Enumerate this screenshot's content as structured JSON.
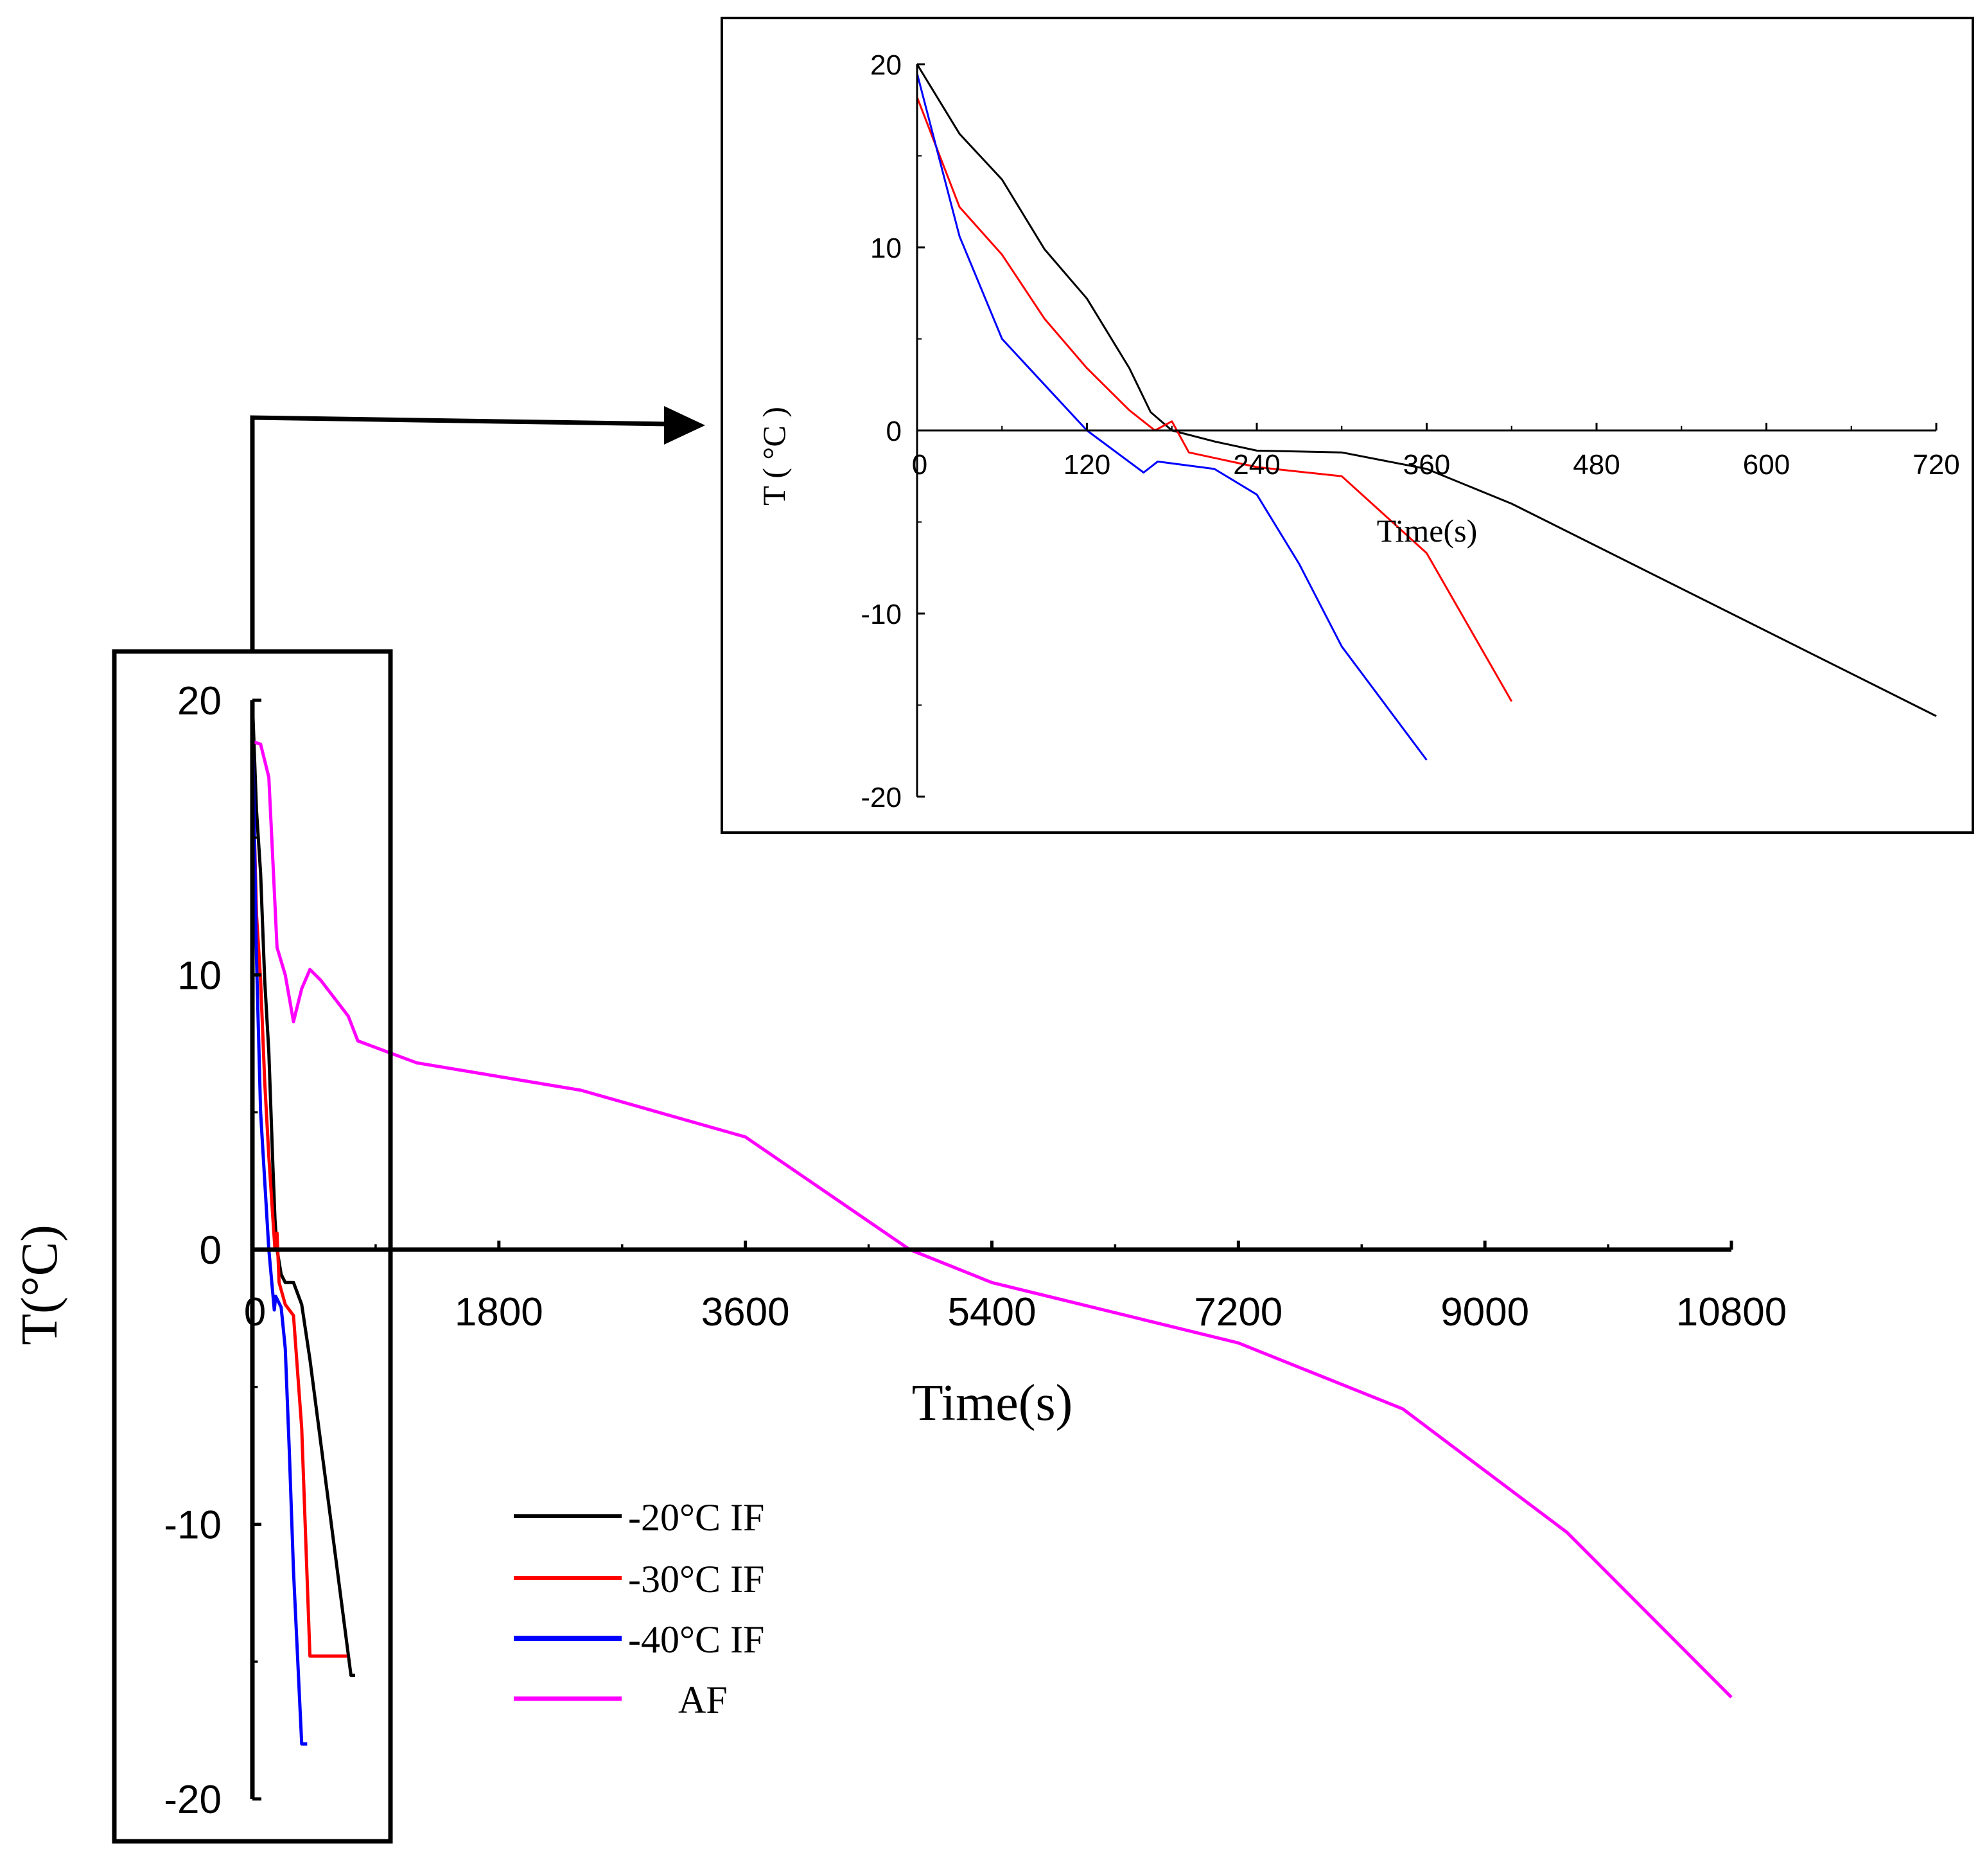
{
  "chart_data": [
    {
      "type": "line",
      "id": "main",
      "xlabel": "Time(s)",
      "ylabel": "T(°C)",
      "xlim": [
        0,
        10800
      ],
      "ylim": [
        -20,
        20
      ],
      "xticks": [
        0,
        1800,
        3600,
        5400,
        7200,
        9000,
        10800
      ],
      "xtick_labels": [
        "0",
        "1800",
        "3600",
        "5400",
        "7200",
        "9000",
        "10800"
      ],
      "yticks": [
        -20,
        -10,
        0,
        10,
        20
      ],
      "ytick_labels": [
        "-20",
        "-10",
        "0",
        "10",
        "20"
      ],
      "legend_position": "bottom-left",
      "series": [
        {
          "name": "-20°C IF",
          "color": "#000000",
          "points": [
            [
              0,
              20
            ],
            [
              30,
              16
            ],
            [
              60,
              13.7
            ],
            [
              90,
              9.8
            ],
            [
              120,
              7.2
            ],
            [
              150,
              3
            ],
            [
              165,
              1.1
            ],
            [
              180,
              0
            ],
            [
              210,
              -0.9
            ],
            [
              240,
              -1.2
            ],
            [
              300,
              -1.2
            ],
            [
              360,
              -2
            ],
            [
              420,
              -4
            ],
            [
              720,
              -15.5
            ],
            [
              750,
              -15.5
            ]
          ]
        },
        {
          "name": "-30°C IF",
          "color": "#ff0000",
          "points": [
            [
              0,
              18
            ],
            [
              30,
              12.2
            ],
            [
              60,
              9.8
            ],
            [
              90,
              6.1
            ],
            [
              120,
              3.4
            ],
            [
              150,
              1.1
            ],
            [
              165,
              0
            ],
            [
              180,
              0.6
            ],
            [
              195,
              -1.2
            ],
            [
              240,
              -2
            ],
            [
              300,
              -2.4
            ],
            [
              360,
              -6.5
            ],
            [
              420,
              -14.8
            ],
            [
              690,
              -14.8
            ]
          ]
        },
        {
          "name": "-40°C IF",
          "color": "#0000ff",
          "points": [
            [
              0,
              19.5
            ],
            [
              30,
              10.6
            ],
            [
              60,
              5
            ],
            [
              90,
              2.5
            ],
            [
              120,
              0
            ],
            [
              160,
              -2.2
            ],
            [
              170,
              -1.7
            ],
            [
              210,
              -2.1
            ],
            [
              240,
              -3.6
            ],
            [
              270,
              -7.4
            ],
            [
              300,
              -11.7
            ],
            [
              360,
              -18
            ],
            [
              400,
              -18
            ]
          ]
        },
        {
          "name": "AF",
          "color": "#ff00ff",
          "points": [
            [
              0,
              18.5
            ],
            [
              60,
              18.4
            ],
            [
              120,
              17.2
            ],
            [
              180,
              11
            ],
            [
              240,
              10
            ],
            [
              300,
              8.3
            ],
            [
              360,
              9.5
            ],
            [
              420,
              10.2
            ],
            [
              500,
              9.8
            ],
            [
              700,
              8.5
            ],
            [
              770,
              7.6
            ],
            [
              1200,
              6.8
            ],
            [
              2400,
              5.8
            ],
            [
              3600,
              4.1
            ],
            [
              4800,
              0
            ],
            [
              5400,
              -1.2
            ],
            [
              7200,
              -3.4
            ],
            [
              8400,
              -5.8
            ],
            [
              9600,
              -10.3
            ],
            [
              10800,
              -16.3
            ]
          ]
        }
      ]
    },
    {
      "type": "line",
      "id": "inset",
      "xlabel": "Time(s)",
      "ylabel": "T ( °C )",
      "xlim": [
        0,
        720
      ],
      "ylim": [
        -20,
        20
      ],
      "xticks": [
        0,
        120,
        240,
        360,
        480,
        600,
        720
      ],
      "xtick_labels": [
        "0",
        "120",
        "240",
        "360",
        "480",
        "600",
        "720"
      ],
      "yticks": [
        -20,
        -10,
        0,
        10,
        20
      ],
      "ytick_labels": [
        "-20",
        "-10",
        "0",
        "10",
        "20"
      ],
      "series": [
        {
          "name": "-20°C IF",
          "color": "#000000",
          "points": [
            [
              0,
              20
            ],
            [
              30,
              16.2
            ],
            [
              60,
              13.7
            ],
            [
              90,
              9.9
            ],
            [
              120,
              7.2
            ],
            [
              150,
              3.4
            ],
            [
              165,
              1
            ],
            [
              180,
              0
            ],
            [
              210,
              -0.6
            ],
            [
              240,
              -1.1
            ],
            [
              300,
              -1.2
            ],
            [
              360,
              -2.1
            ],
            [
              420,
              -4
            ],
            [
              720,
              -15.6
            ]
          ]
        },
        {
          "name": "-30°C IF",
          "color": "#ff0000",
          "points": [
            [
              0,
              18.2
            ],
            [
              30,
              12.2
            ],
            [
              60,
              9.6
            ],
            [
              90,
              6.1
            ],
            [
              120,
              3.4
            ],
            [
              150,
              1.1
            ],
            [
              168,
              0
            ],
            [
              180,
              0.5
            ],
            [
              192,
              -1.2
            ],
            [
              240,
              -2
            ],
            [
              300,
              -2.5
            ],
            [
              360,
              -6.7
            ],
            [
              420,
              -14.8
            ]
          ]
        },
        {
          "name": "-40°C IF",
          "color": "#0000ff",
          "points": [
            [
              0,
              19.5
            ],
            [
              30,
              10.6
            ],
            [
              60,
              5
            ],
            [
              90,
              2.5
            ],
            [
              120,
              0
            ],
            [
              160,
              -2.3
            ],
            [
              170,
              -1.7
            ],
            [
              210,
              -2.1
            ],
            [
              240,
              -3.5
            ],
            [
              270,
              -7.3
            ],
            [
              300,
              -11.8
            ],
            [
              360,
              -18
            ]
          ]
        }
      ]
    }
  ]
}
